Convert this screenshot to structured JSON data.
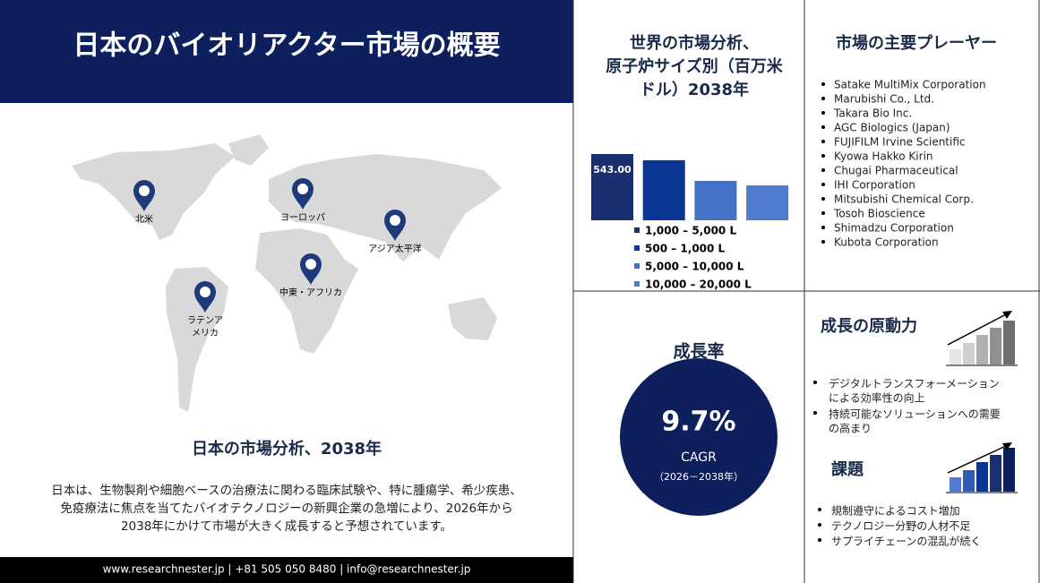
{
  "header": {
    "title": "日本のバイオリアクター市場の概要"
  },
  "map": {
    "regions": [
      [
        "北米"
      ],
      [
        "ヨーロッパ"
      ],
      [
        "アジア太平洋"
      ],
      [
        "中東・アフリカ"
      ],
      [
        "ラテンア",
        "メリカ"
      ]
    ]
  },
  "market": {
    "title": "日本の市場分析、2038年",
    "body_lines": [
      "日本は、生物製剤や細胞ベースの治療法に関わる臨床試験や、特に腫瘍学、希少疾患、",
      "免疫療法に焦点を当てたバイオテクノロジーの新興企業の急増により、2026年から",
      "2038年にかけて市場が大きく成長すると予想されています。"
    ]
  },
  "footer": "www.researchnester.jp | +81 505 050 8480 | info@researchnester.jp",
  "chart_data": {
    "type": "bar",
    "title": [
      "世界の市場分析、",
      "原子炉サイズ別（百万米",
      "ドル）2038年"
    ],
    "categories": [
      "1,000 – 5,000 L",
      "500 – 1,000 L",
      "5,000 – 10,000 L",
      "10,000 – 20,000 L"
    ],
    "values": [
      543,
      492,
      323,
      286
    ],
    "value_labels": [
      "543.00",
      null,
      null,
      null
    ],
    "colors": [
      "#1b2f6e",
      "#0a3593",
      "#4472c4",
      "#4f7bd0"
    ]
  },
  "players": {
    "title": "市場の主要プレーヤー",
    "items": [
      "Satake MultiMix Corporation",
      "Marubishi Co., Ltd.",
      "Takara Bio Inc.",
      "AGC Biologics (Japan)",
      "FUJIFILM Irvine Scientific",
      "Kyowa Hakko Kirin",
      "Chugai Pharmaceutical",
      "IHI Corporation",
      "Mitsubishi Chemical Corp.",
      "Tosoh Bioscience",
      "Shimadzu Corporation",
      "Kubota Corporation"
    ]
  },
  "growth": {
    "title": "成長率",
    "value": "9.7%",
    "label": "CAGR",
    "period": "（2026－2038年）"
  },
  "drivers": {
    "title": "成長の原動力",
    "items": [
      [
        "デジタルトランスフォーメーション",
        "による効率性の向上"
      ],
      [
        "持続可能なソリューションへの需要",
        "の高まり"
      ]
    ]
  },
  "challenges": {
    "title": "課題",
    "items": [
      "規制遵守によるコスト増加",
      "テクノロジー分野の人材不足",
      "サプライチェーンの混乱が続く"
    ]
  }
}
